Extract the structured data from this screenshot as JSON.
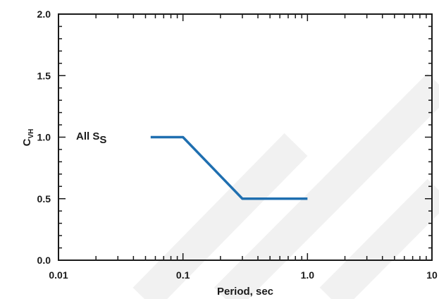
{
  "chart_data": {
    "type": "line",
    "xscale": "log",
    "xlim": [
      0.01,
      10
    ],
    "ylim": [
      0.0,
      2.0
    ],
    "xlabel": "Period, sec",
    "ylabel_main": "C",
    "ylabel_sub": "VH",
    "x_ticks": [
      0.01,
      0.1,
      1.0,
      10
    ],
    "x_tick_labels": [
      "0.01",
      "0.1",
      "1.0",
      "10"
    ],
    "y_ticks": [
      0.0,
      0.5,
      1.0,
      1.5,
      2.0
    ],
    "y_tick_labels": [
      "0.0",
      "0.5",
      "1.0",
      "1.5",
      "2.0"
    ],
    "series": [
      {
        "color": "#1f6fb0",
        "x": [
          0.055,
          0.1,
          0.3,
          1.0
        ],
        "y": [
          1.0,
          1.0,
          0.5,
          0.5
        ]
      }
    ],
    "annotation": {
      "text_main": "All S",
      "text_sub": "S",
      "x": 0.02,
      "y": 1.0
    },
    "grid": false,
    "frame": "box with inward ticks on all sides"
  }
}
